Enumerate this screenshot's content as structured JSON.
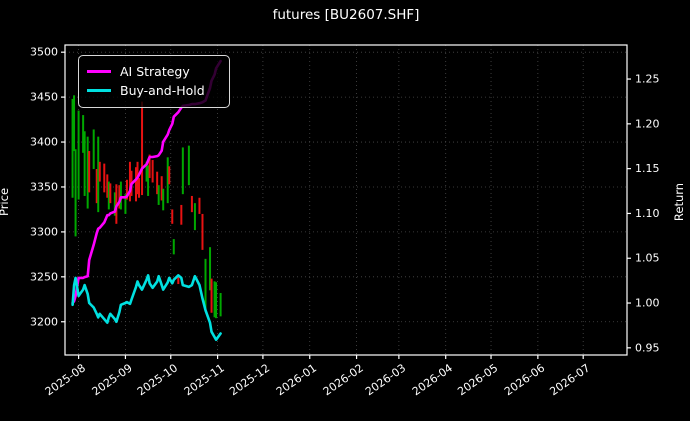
{
  "title": "futures [BU2607.SHF]",
  "legend": {
    "items": [
      {
        "label": "AI Strategy",
        "color": "#ff00ff"
      },
      {
        "label": "Buy-and-Hold",
        "color": "#00e0e0"
      }
    ]
  },
  "axes": {
    "left_label": "Price",
    "right_label": "Return",
    "price_ticks": [
      3500,
      3450,
      3400,
      3350,
      3300,
      3250,
      3200
    ],
    "return_ticks": [
      "1.25",
      "1.20",
      "1.15",
      "1.10",
      "1.05",
      "1.00",
      "0.95"
    ],
    "x_ticks": [
      {
        "label": "2025-08",
        "date": "2025-08-01"
      },
      {
        "label": "2025-09",
        "date": "2025-09-01"
      },
      {
        "label": "2025-10",
        "date": "2025-10-01"
      },
      {
        "label": "2025-11",
        "date": "2025-11-01"
      },
      {
        "label": "2025-12",
        "date": "2025-12-01"
      },
      {
        "label": "2026-01",
        "date": "2026-01-01"
      },
      {
        "label": "2026-02",
        "date": "2026-02-01"
      },
      {
        "label": "2026-03",
        "date": "2026-03-01"
      },
      {
        "label": "2026-04",
        "date": "2026-04-01"
      },
      {
        "label": "2026-05",
        "date": "2026-05-01"
      },
      {
        "label": "2026-06",
        "date": "2026-06-01"
      },
      {
        "label": "2026-07",
        "date": "2026-07-01"
      }
    ]
  },
  "chart_data": {
    "type": "candlestick+line",
    "title": "futures [BU2607.SHF]",
    "grid": true,
    "legend_position": "upper-left",
    "background": "#000000",
    "text_color": "#ffffff",
    "x_domain": [
      "2025-07-23",
      "2026-07-30"
    ],
    "price_ylim": [
      3163,
      3508
    ],
    "return_ylim": [
      0.942,
      1.288
    ],
    "candle_colors": {
      "up": "#00a800",
      "down": "#e81212"
    },
    "dates": [
      "2025-07-28",
      "2025-07-29",
      "2025-07-30",
      "2025-08-01",
      "2025-08-04",
      "2025-08-05",
      "2025-08-07",
      "2025-08-08",
      "2025-08-11",
      "2025-08-13",
      "2025-08-14",
      "2025-08-15",
      "2025-08-18",
      "2025-08-20",
      "2025-08-21",
      "2025-08-22",
      "2025-08-25",
      "2025-08-26",
      "2025-08-28",
      "2025-08-29",
      "2025-09-01",
      "2025-09-02",
      "2025-09-04",
      "2025-09-05",
      "2025-09-08",
      "2025-09-09",
      "2025-09-10",
      "2025-09-12",
      "2025-09-15",
      "2025-09-16",
      "2025-09-17",
      "2025-09-19",
      "2025-09-22",
      "2025-09-23",
      "2025-09-25",
      "2025-09-26",
      "2025-09-29",
      "2025-09-30",
      "2025-10-02",
      "2025-10-03",
      "2025-10-06",
      "2025-10-08",
      "2025-10-09",
      "2025-10-13",
      "2025-10-15",
      "2025-10-17",
      "2025-10-20",
      "2025-10-22",
      "2025-10-24",
      "2025-10-27",
      "2025-10-28",
      "2025-10-30",
      "2025-10-31",
      "2025-11-03"
    ],
    "candles_ohlc": [
      [
        3360,
        3448,
        3338,
        3436
      ],
      [
        3400,
        3452,
        3390,
        3444
      ],
      [
        3310,
        3392,
        3295,
        3380
      ],
      [
        3350,
        3435,
        3336,
        3428
      ],
      [
        3392,
        3430,
        3388,
        3424
      ],
      [
        3352,
        3412,
        3340,
        3404
      ],
      [
        3338,
        3406,
        3326,
        3398
      ],
      [
        3386,
        3390,
        3344,
        3352
      ],
      [
        3374,
        3414,
        3370,
        3408
      ],
      [
        3366,
        3370,
        3332,
        3338
      ],
      [
        3330,
        3406,
        3322,
        3398
      ],
      [
        3374,
        3378,
        3356,
        3360
      ],
      [
        3372,
        3376,
        3344,
        3348
      ],
      [
        3360,
        3364,
        3338,
        3342
      ],
      [
        3328,
        3356,
        3325,
        3352
      ],
      [
        3350,
        3354,
        3332,
        3336
      ],
      [
        3320,
        3344,
        3318,
        3340
      ],
      [
        3348,
        3353,
        3309,
        3314
      ],
      [
        3349,
        3352,
        3326,
        3330
      ],
      [
        3327,
        3356,
        3325,
        3351
      ],
      [
        3322,
        3342,
        3320,
        3338
      ],
      [
        3354,
        3358,
        3336,
        3340
      ],
      [
        3374,
        3378,
        3334,
        3338
      ],
      [
        3364,
        3368,
        3340,
        3344
      ],
      [
        3368,
        3372,
        3334,
        3338
      ],
      [
        3374,
        3378,
        3342,
        3346
      ],
      [
        3356,
        3360,
        3338,
        3342
      ],
      [
        3440,
        3445,
        3341,
        3346
      ],
      [
        3358,
        3378,
        3356,
        3374
      ],
      [
        3344,
        3374,
        3340,
        3370
      ],
      [
        3382,
        3386,
        3360,
        3364
      ],
      [
        3376,
        3380,
        3355,
        3358
      ],
      [
        3363,
        3367,
        3342,
        3346
      ],
      [
        3332,
        3352,
        3330,
        3348
      ],
      [
        3358,
        3362,
        3335,
        3339
      ],
      [
        3326,
        3348,
        3324,
        3344
      ],
      [
        3336,
        3383,
        3332,
        3378
      ],
      [
        3370,
        3373,
        3353,
        3356
      ],
      [
        3322,
        3325,
        3309,
        3312
      ],
      [
        3277,
        3292,
        3275,
        3289
      ],
      [
        3250,
        3252,
        3242,
        3244
      ],
      [
        3327,
        3330,
        3308,
        3311
      ],
      [
        3346,
        3394,
        3342,
        3390
      ],
      [
        3356,
        3396,
        3352,
        3392
      ],
      [
        3336,
        3340,
        3322,
        3326
      ],
      [
        3305,
        3332,
        3302,
        3328
      ],
      [
        3334,
        3338,
        3320,
        3322
      ],
      [
        3316,
        3320,
        3280,
        3284
      ],
      [
        3214,
        3270,
        3211,
        3264
      ],
      [
        3238,
        3283,
        3235,
        3278
      ],
      [
        3244,
        3248,
        3210,
        3214
      ],
      [
        3208,
        3245,
        3205,
        3240
      ],
      [
        3206,
        3244,
        3204,
        3238
      ],
      [
        3210,
        3232,
        3206,
        3228
      ]
    ],
    "series": [
      {
        "name": "AI Strategy",
        "axis": "return",
        "color": "#ff00ff",
        "values": [
          1.0,
          1.002,
          1.008,
          1.028,
          1.028,
          1.029,
          1.03,
          1.048,
          1.065,
          1.078,
          1.083,
          1.084,
          1.09,
          1.098,
          1.098,
          1.1,
          1.102,
          1.108,
          1.113,
          1.118,
          1.118,
          1.119,
          1.125,
          1.133,
          1.138,
          1.14,
          1.143,
          1.15,
          1.155,
          1.159,
          1.163,
          1.163,
          1.164,
          1.165,
          1.17,
          1.18,
          1.188,
          1.193,
          1.2,
          1.208,
          1.213,
          1.218,
          1.22,
          1.221,
          1.222,
          1.222,
          1.223,
          1.224,
          1.226,
          1.24,
          1.248,
          1.255,
          1.262,
          1.27
        ]
      },
      {
        "name": "Buy-and-Hold",
        "axis": "return",
        "color": "#00e0e0",
        "values": [
          0.998,
          1.02,
          1.028,
          1.008,
          1.015,
          1.02,
          1.01,
          1.0,
          0.995,
          0.988,
          0.984,
          0.988,
          0.982,
          0.978,
          0.984,
          0.988,
          0.982,
          0.979,
          0.99,
          0.998,
          1.0,
          1.001,
          0.999,
          1.004,
          1.018,
          1.024,
          1.02,
          1.015,
          1.026,
          1.031,
          1.022,
          1.017,
          1.024,
          1.03,
          1.02,
          1.015,
          1.023,
          1.028,
          1.022,
          1.026,
          1.031,
          1.028,
          1.02,
          1.018,
          1.02,
          1.03,
          1.02,
          1.005,
          0.992,
          0.978,
          0.968,
          0.962,
          0.959,
          0.966
        ]
      }
    ]
  }
}
